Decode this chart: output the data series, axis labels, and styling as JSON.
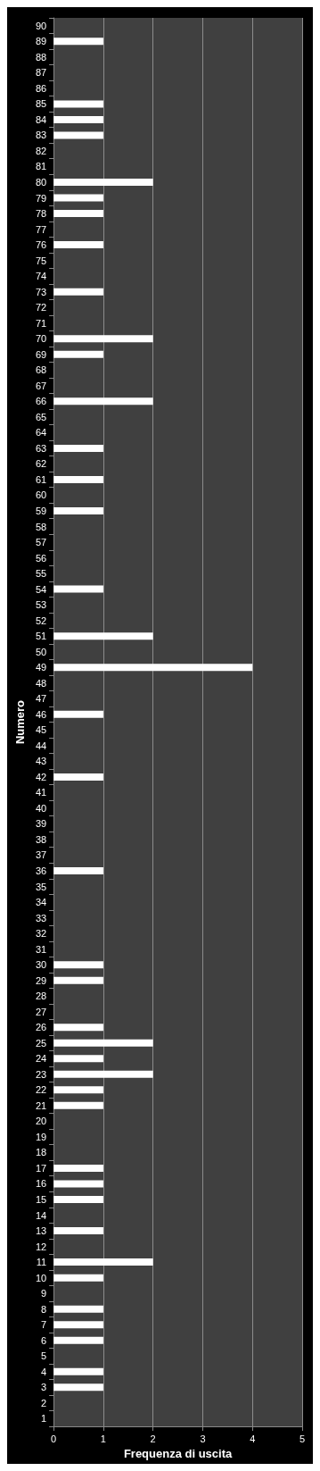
{
  "chart_data": {
    "type": "bar",
    "orientation": "horizontal",
    "xlabel": "Frequenza di uscita",
    "ylabel": "Numero",
    "categories": [
      "90",
      "89",
      "88",
      "87",
      "86",
      "85",
      "84",
      "83",
      "82",
      "81",
      "80",
      "79",
      "78",
      "77",
      "76",
      "75",
      "74",
      "73",
      "72",
      "71",
      "70",
      "69",
      "68",
      "67",
      "66",
      "65",
      "64",
      "63",
      "62",
      "61",
      "60",
      "59",
      "58",
      "57",
      "56",
      "55",
      "54",
      "53",
      "52",
      "51",
      "50",
      "49",
      "48",
      "47",
      "46",
      "45",
      "44",
      "43",
      "42",
      "41",
      "40",
      "39",
      "38",
      "37",
      "36",
      "35",
      "34",
      "33",
      "32",
      "31",
      "30",
      "29",
      "28",
      "27",
      "26",
      "25",
      "24",
      "23",
      "22",
      "21",
      "20",
      "19",
      "18",
      "17",
      "16",
      "15",
      "14",
      "13",
      "12",
      "11",
      "10",
      "9",
      "8",
      "7",
      "6",
      "5",
      "4",
      "3",
      "2",
      "1"
    ],
    "values": [
      0,
      1,
      0,
      0,
      0,
      1,
      1,
      1,
      0,
      0,
      2,
      1,
      1,
      0,
      1,
      0,
      0,
      1,
      0,
      0,
      2,
      1,
      0,
      0,
      2,
      0,
      0,
      1,
      0,
      1,
      0,
      1,
      0,
      0,
      0,
      0,
      1,
      0,
      0,
      2,
      0,
      4,
      0,
      0,
      1,
      0,
      0,
      0,
      1,
      0,
      0,
      0,
      0,
      0,
      1,
      0,
      0,
      0,
      0,
      0,
      1,
      1,
      0,
      0,
      1,
      2,
      1,
      2,
      1,
      1,
      0,
      0,
      0,
      1,
      1,
      1,
      0,
      1,
      0,
      2,
      1,
      0,
      1,
      1,
      1,
      0,
      1,
      1,
      0,
      0
    ],
    "color": "#ffffff",
    "xlim": [
      0,
      5
    ],
    "xticks": [
      0,
      1,
      2,
      3,
      4,
      5
    ],
    "grid": "x"
  }
}
